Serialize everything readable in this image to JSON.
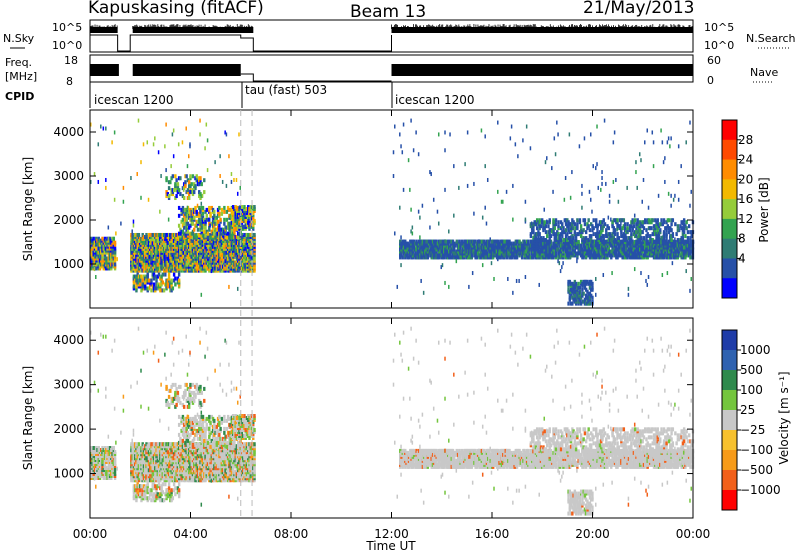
{
  "header": {
    "station": "Kapuskasing (fitACF)",
    "beam": "Beam 13",
    "date": "21/May/2013"
  },
  "status_panels": {
    "nsky": {
      "label": "N.Sky",
      "ticks": [
        "10^5",
        "10^0"
      ]
    },
    "nsearch": {
      "label": "N.Search",
      "ticks": [
        "10^5",
        "10^0"
      ]
    },
    "freq": {
      "label_line1": "Freq.",
      "label_line2": "[MHz]",
      "ticks": [
        "18",
        "8"
      ]
    },
    "nave": {
      "label": "Nave",
      "ticks": [
        "60",
        "0"
      ]
    },
    "cpid": {
      "label": "CPID",
      "segments": [
        {
          "name": "icescan 1200",
          "start_h": 0.0
        },
        {
          "name": "tau (fast) 503",
          "start_h": 6.05
        },
        {
          "name": "icescan 1200",
          "start_h": 12.0
        }
      ]
    }
  },
  "chart_data": [
    {
      "type": "heatmap",
      "name": "power",
      "xlabel": "",
      "ylabel": "Slant Range [km]",
      "x_ticks": [
        "00:00",
        "04:00",
        "08:00",
        "12:00",
        "16:00",
        "20:00",
        "00:00"
      ],
      "y_ticks": [
        "1000",
        "2000",
        "3000",
        "4000"
      ],
      "xlim_hours": [
        0,
        24
      ],
      "ylim_km": [
        0,
        4500
      ],
      "colorbar": {
        "label": "Power [dB]",
        "ticks": [
          "28",
          "24",
          "20",
          "16",
          "12",
          "8",
          "4"
        ],
        "colors": [
          "#ff0000",
          "#ff4a00",
          "#ff8c00",
          "#f2b900",
          "#95cc3a",
          "#33a350",
          "#2f7c74",
          "#2650a8",
          "#0000ff"
        ]
      },
      "data_gap_hours": [
        6.5,
        12.0
      ]
    },
    {
      "type": "heatmap",
      "name": "velocity",
      "xlabel": "Time UT",
      "ylabel": "Slant Range [km]",
      "x_ticks": [
        "00:00",
        "04:00",
        "08:00",
        "12:00",
        "16:00",
        "20:00",
        "00:00"
      ],
      "y_ticks": [
        "1000",
        "2000",
        "3000",
        "4000"
      ],
      "xlim_hours": [
        0,
        24
      ],
      "ylim_km": [
        0,
        4500
      ],
      "colorbar": {
        "label": "Velocity [m s⁻¹]",
        "ticks": [
          "1000",
          "500",
          "100",
          "25",
          "−25",
          "−100",
          "−500",
          "−1000"
        ],
        "colors": [
          "#1f3ca8",
          "#2f62b0",
          "#2f8a4d",
          "#74c53d",
          "#c8c8c8",
          "#f7c12e",
          "#f79b19",
          "#f2601a",
          "#ff0000"
        ]
      },
      "data_gap_hours": [
        6.5,
        12.0
      ]
    }
  ]
}
